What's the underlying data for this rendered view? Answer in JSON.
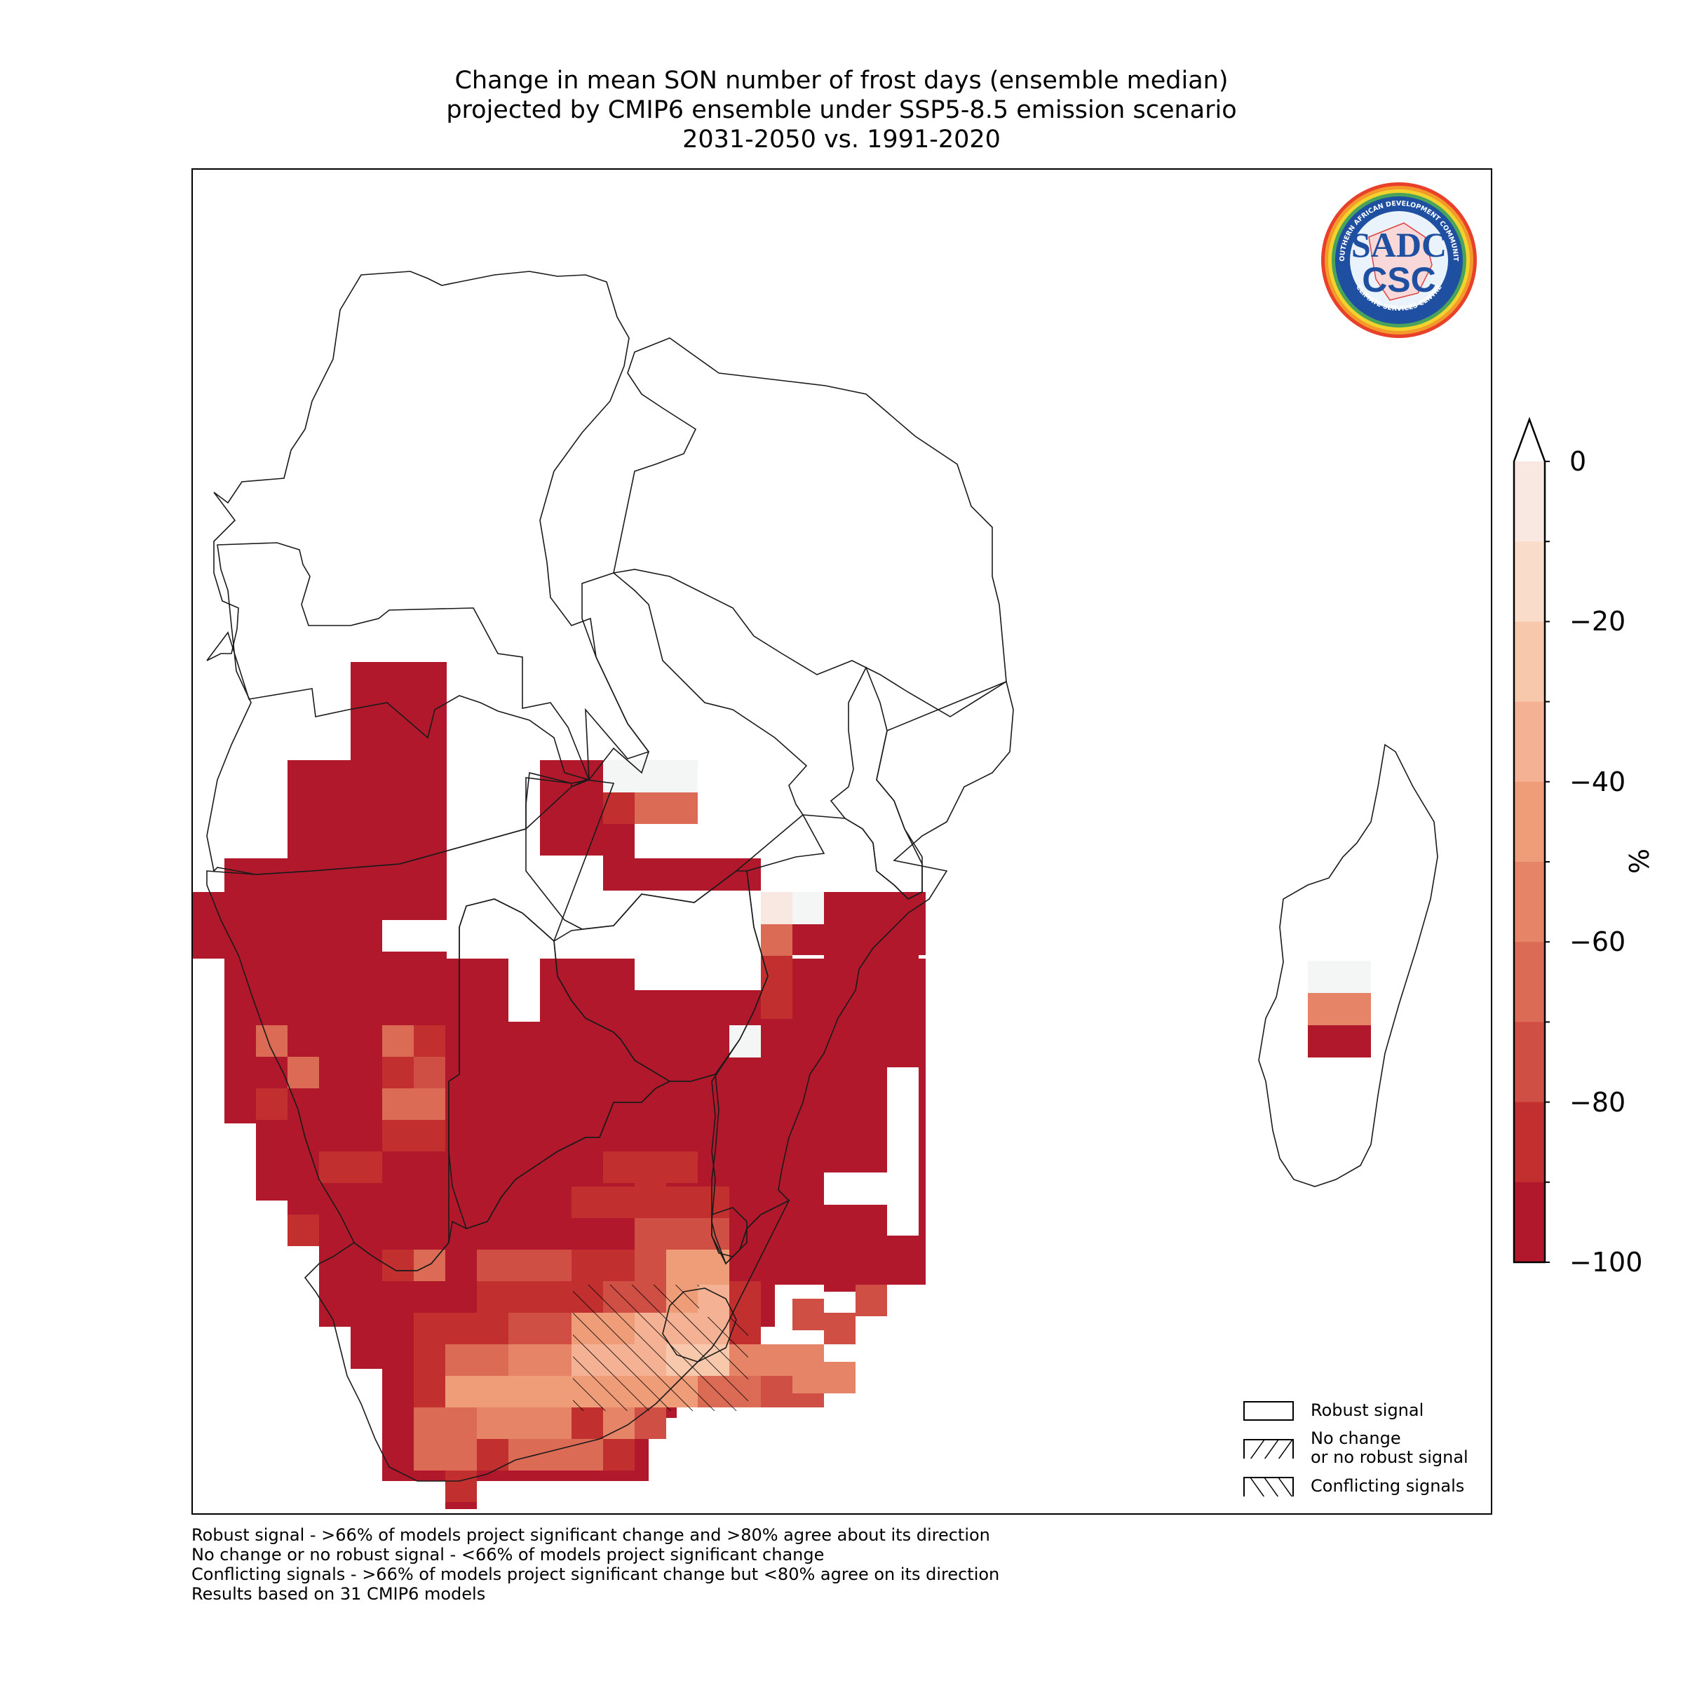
{
  "title": {
    "line1": "Change in mean SON number of frost days (ensemble median)",
    "line2": "projected by CMIP6 ensemble under SSP5-8.5 emission scenario",
    "line3": "2031-2050 vs. 1991-2020"
  },
  "logo": {
    "icon": "sadc-csc-logo-icon",
    "text_main": "SADC",
    "text_sub": "CSC",
    "ring_top": "SOUTHERN AFRICAN DEVELOPMENT COMMUNITY",
    "ring_bottom": "CLIMATE SERVICES CENTRE"
  },
  "legend": {
    "robust": "Robust signal",
    "no_change_line1": "No change",
    "no_change_line2": "or no robust signal",
    "conflicting": "Conflicting signals"
  },
  "colorbar": {
    "unit": "%",
    "ticks": [
      "0",
      "−20",
      "−40",
      "−60",
      "−80",
      "−100"
    ],
    "tick_values": [
      0,
      -20,
      -40,
      -60,
      -80,
      -100
    ],
    "range": [
      -100,
      0
    ],
    "extend": "max",
    "colors": [
      "#b2182b",
      "#c1302f",
      "#d04f45",
      "#db6b55",
      "#e58466",
      "#ef9c79",
      "#f4b194",
      "#f8c8ad",
      "#fadcca",
      "#f8e8e1"
    ]
  },
  "footnotes": [
    "Robust signal - >66% of models project significant change and >80% agree about its direction",
    "No change or no robust signal - <66% of models project significant change",
    "Conflicting signals - >66% of models project significant change but <80% agree on its direction",
    "Results based on 31 CMIP6 models"
  ]
}
